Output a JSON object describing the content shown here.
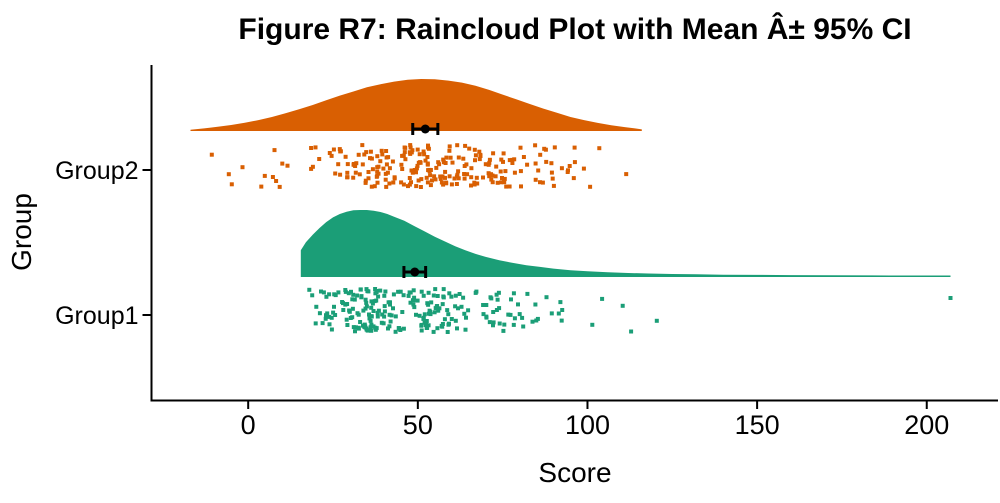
{
  "page": {
    "background": "#FFFFFF"
  },
  "chart_data": {
    "type": "raincloud",
    "title": "Figure R7: Raincloud Plot with Mean Â± 95% CI",
    "xlabel": "Score",
    "ylabel": "Group",
    "x_ticks": [
      0,
      50,
      100,
      150,
      200
    ],
    "xlim": [
      -28.5,
      221
    ],
    "grid": false,
    "legend": "none",
    "axis_color": "#000000",
    "errorbar_color": "#000000",
    "categories": [
      "Group1",
      "Group2"
    ],
    "series": [
      {
        "name": "Group1",
        "color": "#1B9E77",
        "mean": 49.1,
        "ci_low": 45.9,
        "ci_high": 52.3,
        "points_n": 250,
        "points_range": [
          15,
          135
        ],
        "outlier_points": [
          [
            207,
            298
          ]
        ],
        "distribution": {
          "kind": "right-skewed",
          "shift": 15,
          "scale": 11.5
        },
        "density": [
          [
            15.5,
            0.4
          ],
          [
            17,
            0.52
          ],
          [
            19,
            0.63
          ],
          [
            21,
            0.73
          ],
          [
            23,
            0.82
          ],
          [
            25,
            0.89
          ],
          [
            27,
            0.94
          ],
          [
            29,
            0.975
          ],
          [
            31,
            0.995
          ],
          [
            33,
            1.0
          ],
          [
            35,
            1.0
          ],
          [
            37,
            0.99
          ],
          [
            39,
            0.97
          ],
          [
            41,
            0.94
          ],
          [
            43,
            0.9
          ],
          [
            46,
            0.84
          ],
          [
            49,
            0.76
          ],
          [
            52,
            0.68
          ],
          [
            55,
            0.6
          ],
          [
            58,
            0.53
          ],
          [
            61,
            0.46
          ],
          [
            64,
            0.4
          ],
          [
            67,
            0.345
          ],
          [
            70,
            0.3
          ],
          [
            74,
            0.25
          ],
          [
            78,
            0.21
          ],
          [
            82,
            0.175
          ],
          [
            86,
            0.15
          ],
          [
            90,
            0.125
          ],
          [
            95,
            0.1
          ],
          [
            100,
            0.085
          ],
          [
            106,
            0.07
          ],
          [
            112,
            0.06
          ],
          [
            118,
            0.052
          ],
          [
            125,
            0.045
          ],
          [
            132,
            0.04
          ],
          [
            140,
            0.035
          ],
          [
            150,
            0.031
          ],
          [
            160,
            0.028
          ],
          [
            172,
            0.026
          ],
          [
            184,
            0.024
          ],
          [
            196,
            0.023
          ],
          [
            207,
            0.022
          ]
        ]
      },
      {
        "name": "Group2",
        "color": "#D95F02",
        "mean": 52.2,
        "ci_low": 48.5,
        "ci_high": 55.9,
        "points_n": 250,
        "points_range": [
          -17.5,
          116.5
        ],
        "outlier_points": [],
        "distribution": {
          "kind": "normal",
          "mu": 52,
          "sigma": 21
        },
        "density": [
          [
            -17,
            0.025
          ],
          [
            -13,
            0.05
          ],
          [
            -9,
            0.08
          ],
          [
            -5,
            0.115
          ],
          [
            -1,
            0.16
          ],
          [
            3,
            0.21
          ],
          [
            7,
            0.27
          ],
          [
            11,
            0.34
          ],
          [
            15,
            0.42
          ],
          [
            19,
            0.5
          ],
          [
            23,
            0.59
          ],
          [
            27,
            0.68
          ],
          [
            31,
            0.76
          ],
          [
            35,
            0.84
          ],
          [
            39,
            0.9
          ],
          [
            43,
            0.95
          ],
          [
            47,
            0.985
          ],
          [
            51,
            1.0
          ],
          [
            55,
            0.995
          ],
          [
            59,
            0.97
          ],
          [
            63,
            0.93
          ],
          [
            67,
            0.87
          ],
          [
            71,
            0.79
          ],
          [
            75,
            0.7
          ],
          [
            79,
            0.61
          ],
          [
            83,
            0.52
          ],
          [
            87,
            0.43
          ],
          [
            91,
            0.35
          ],
          [
            95,
            0.27
          ],
          [
            99,
            0.21
          ],
          [
            103,
            0.155
          ],
          [
            107,
            0.11
          ],
          [
            111,
            0.075
          ],
          [
            114,
            0.05
          ],
          [
            116,
            0.03
          ]
        ]
      }
    ]
  }
}
